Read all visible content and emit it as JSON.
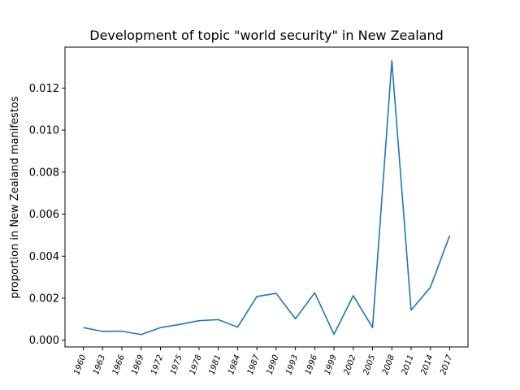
{
  "chart_data": {
    "type": "line",
    "title": "Development of topic \"world security\" in New Zealand",
    "xlabel": "",
    "ylabel": "proportion in New Zealand manifestos",
    "categories": [
      "1960",
      "1963",
      "1966",
      "1969",
      "1972",
      "1975",
      "1978",
      "1981",
      "1984",
      "1987",
      "1990",
      "1993",
      "1996",
      "1999",
      "2002",
      "2005",
      "2008",
      "2011",
      "2014",
      "2017"
    ],
    "series": [
      {
        "values": [
          0.0006,
          0.00042,
          0.00043,
          0.00027,
          0.0006,
          0.00075,
          0.00093,
          0.00098,
          0.00062,
          0.00208,
          0.00223,
          0.00102,
          0.00226,
          0.00028,
          0.00212,
          0.0006,
          0.0133,
          0.00143,
          0.00252,
          0.00498
        ],
        "color": "#1f77b4"
      }
    ],
    "ylim": [
      -0.00032,
      0.01395
    ],
    "yticks": [
      0.0,
      0.002,
      0.004,
      0.006,
      0.008,
      0.01,
      0.012
    ],
    "ytick_labels": [
      "0.000",
      "0.002",
      "0.004",
      "0.006",
      "0.008",
      "0.010",
      "0.012"
    ],
    "grid": false,
    "legend": "none"
  }
}
